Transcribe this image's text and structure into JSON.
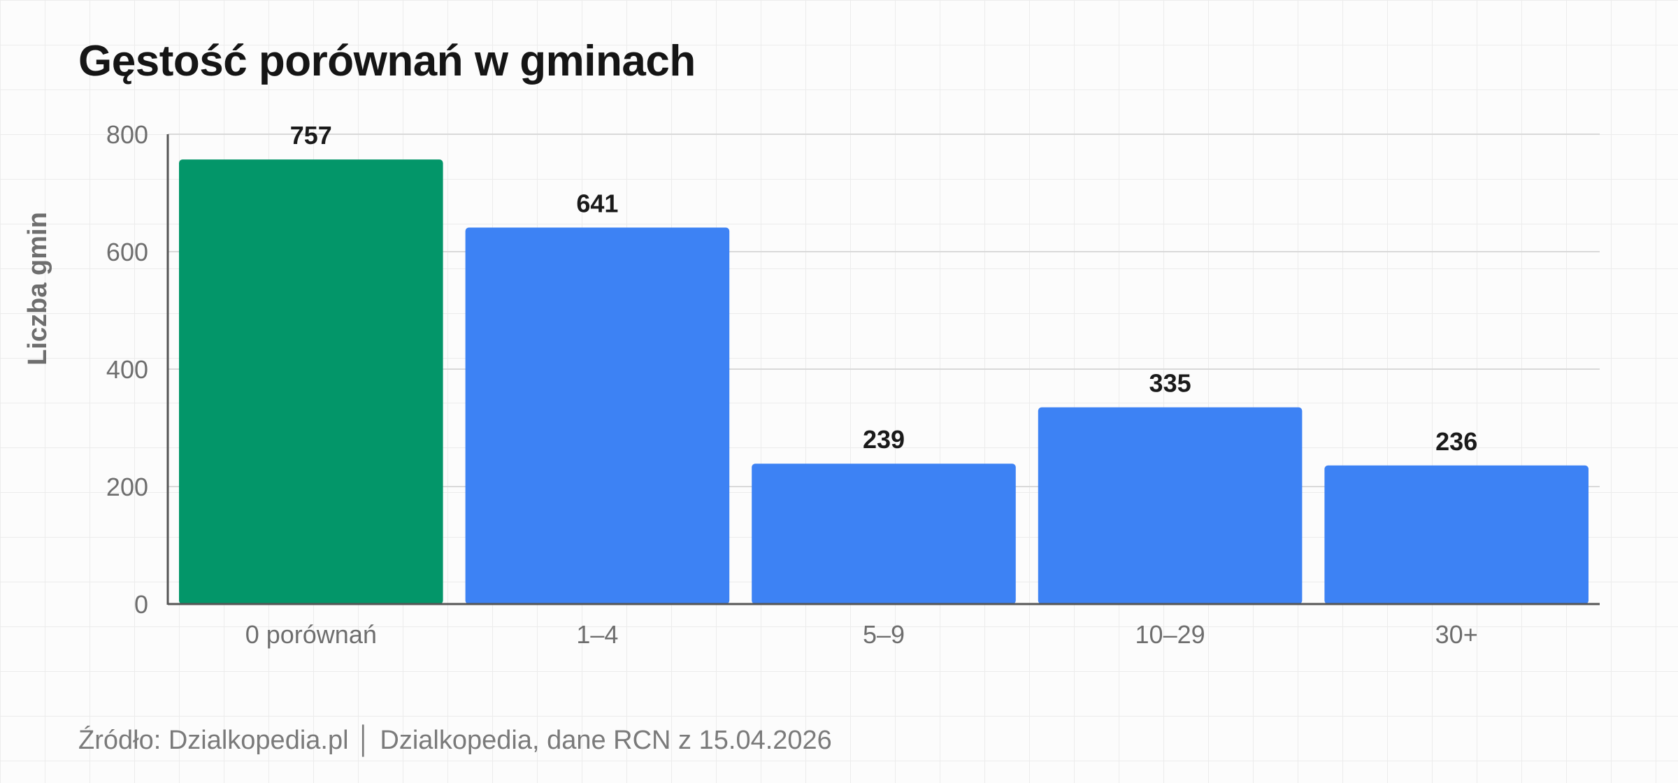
{
  "chart_data": {
    "type": "bar",
    "title": "Gęstość porównań w gminach",
    "xlabel": "",
    "ylabel": "Liczba gmin",
    "categories": [
      "0 porównań",
      "1–4",
      "5–9",
      "10–29",
      "30+"
    ],
    "values": [
      757,
      641,
      239,
      335,
      236
    ],
    "data_labels": [
      "757",
      "641",
      "239",
      "335",
      "236"
    ],
    "ylim": [
      0,
      800
    ],
    "yticks": [
      0,
      200,
      400,
      600,
      800
    ],
    "ytick_labels": [
      "0",
      "200",
      "400",
      "600",
      "800"
    ],
    "grid": true,
    "bar_colors": [
      "#039669",
      "#3d82f4",
      "#3d82f4",
      "#3d82f4",
      "#3d82f4"
    ]
  },
  "footer": {
    "source": "Źródło: Dzialkopedia.pl │ Dzialkopedia, dane RCN z 15.04.2026"
  }
}
